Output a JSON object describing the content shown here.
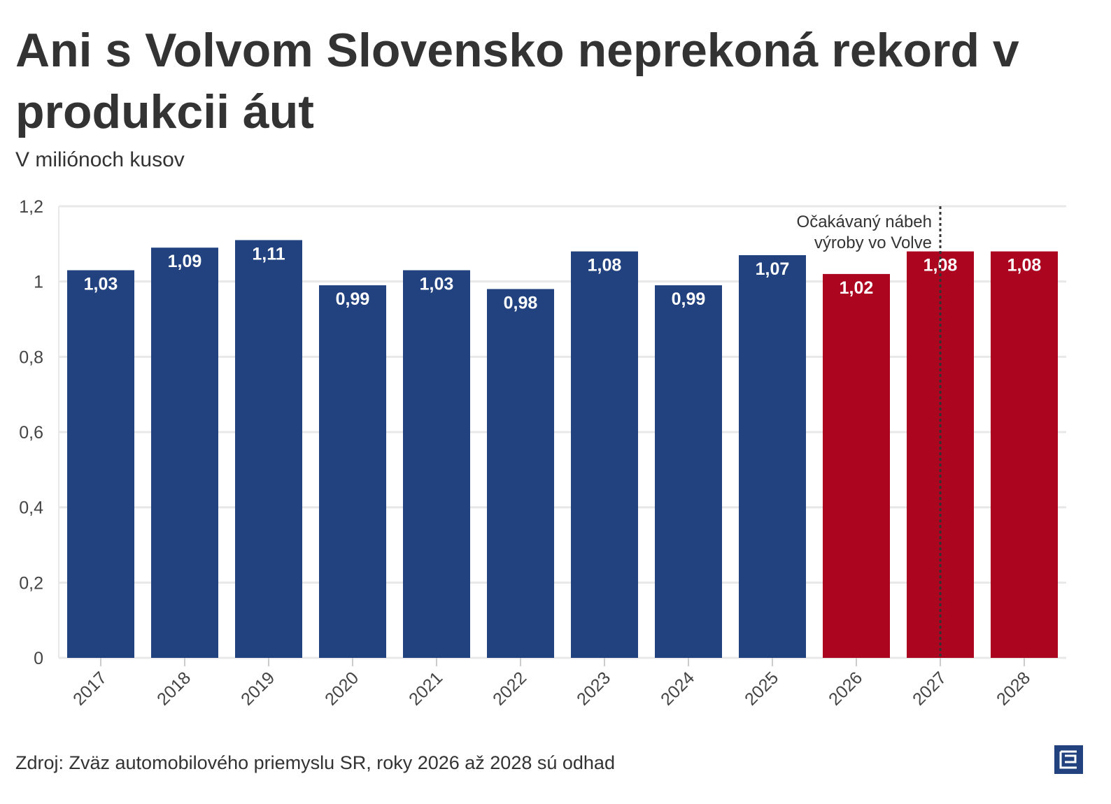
{
  "title": "Ani s Volvom Slovensko neprekoná rekord v produkcii áut",
  "subtitle": "V miliónoch kusov",
  "source": "Zdroj: Zväz automobilového priemyslu SR, roky 2026 až 2028 sú odhad",
  "colors": {
    "actual": "#21427f",
    "estimate": "#ab0520",
    "grid": "#e8e8e8"
  },
  "chart_data": {
    "type": "bar",
    "title": "Ani s Volvom Slovensko neprekoná rekord v produkcii áut",
    "ylabel": "V miliónoch kusov",
    "xlabel": "",
    "categories": [
      "2017",
      "2018",
      "2019",
      "2020",
      "2021",
      "2022",
      "2023",
      "2024",
      "2025",
      "2026",
      "2027",
      "2028"
    ],
    "values": [
      1.03,
      1.09,
      1.11,
      0.99,
      1.03,
      0.98,
      1.08,
      0.99,
      1.07,
      1.02,
      1.08,
      1.08
    ],
    "value_labels": [
      "1,03",
      "1,09",
      "1,11",
      "0,99",
      "1,03",
      "0,98",
      "1,08",
      "0,99",
      "1,07",
      "1,02",
      "1,08",
      "1,08"
    ],
    "estimate": [
      false,
      false,
      false,
      false,
      false,
      false,
      false,
      false,
      false,
      true,
      true,
      true
    ],
    "ylim": [
      0,
      1.2
    ],
    "yticks": [
      0,
      0.2,
      0.4,
      0.6,
      0.8,
      1,
      1.2
    ],
    "ytick_labels": [
      "0",
      "0,2",
      "0,4",
      "0,6",
      "0,8",
      "1",
      "1,2"
    ],
    "grid": true,
    "annotation": {
      "category": "2027",
      "lines": [
        "Očakávaný nábeh",
        "výroby vo Volve"
      ]
    }
  }
}
